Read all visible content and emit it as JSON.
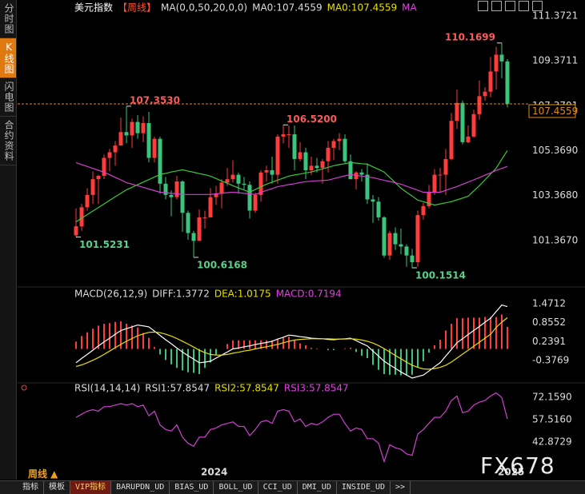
{
  "sidebar": [
    {
      "text": "分时图",
      "active": false
    },
    {
      "text": "K线图",
      "active": true
    },
    {
      "text": "闪电图",
      "active": false
    },
    {
      "text": "合约资料",
      "active": false
    }
  ],
  "bottom": {
    "period": "周线 ▲",
    "watermark": "FX678",
    "tabs": [
      {
        "text": "指标",
        "active": false
      },
      {
        "text": "模板",
        "active": false
      },
      {
        "text": "VIP指标",
        "active": true
      },
      {
        "text": "BARUPDN_UD",
        "active": false
      },
      {
        "text": "BIAS_UD",
        "active": false
      },
      {
        "text": "BOLL_UD",
        "active": false
      },
      {
        "text": "CCI_UD",
        "active": false
      },
      {
        "text": "DMI_UD",
        "active": false
      },
      {
        "text": "INSIDE_UD",
        "active": false
      },
      {
        "text": ">>",
        "active": false
      }
    ]
  },
  "chart_data": [
    {
      "type": "candlestick",
      "header": [
        {
          "text": "美元指数",
          "color": "#ffffff"
        },
        {
          "text": "【周线】",
          "color": "#ff5030"
        },
        {
          "text": "MA(0,0,50,20,0,0)",
          "color": "#dddddd"
        },
        {
          "text": "MA0:107.4559",
          "color": "#dddddd"
        },
        {
          "text": "MA0:107.4559",
          "color": "#e8e000"
        },
        {
          "text": "MA",
          "color": "#e040e0"
        }
      ],
      "up_color": "#ff3c3c",
      "down_color": "#3cc47c",
      "open": [
        101.6,
        102.0,
        102.85,
        103.4,
        104.1,
        104.25,
        105.05,
        105.3,
        105.6,
        106.2,
        106.05,
        106.65,
        106.15,
        106.6,
        105.05,
        105.9,
        103.9,
        103.4,
        103.3,
        104.0,
        102.6,
        101.7,
        101.35,
        102.4,
        102.4,
        103.3,
        103.45,
        103.95,
        104.1,
        104.3,
        103.9,
        103.85,
        102.7,
        103.4,
        104.4,
        104.5,
        104.3,
        106.0,
        106.1,
        106.1,
        105.0,
        105.3,
        104.5,
        104.7,
        104.6,
        104.9,
        105.5,
        105.8,
        105.9,
        104.9,
        104.1,
        104.4,
        104.3,
        103.2,
        103.1,
        102.4,
        100.7,
        101.7,
        101.2,
        101.1,
        100.7,
        100.4,
        102.5,
        102.9,
        103.5,
        104.3,
        104.3,
        105.0,
        106.7,
        107.5,
        105.75,
        106.0,
        107.0,
        107.8,
        108.0,
        108.9,
        109.65,
        109.35
      ],
      "high": [
        102.8,
        103.0,
        103.7,
        104.45,
        104.3,
        105.2,
        105.45,
        105.8,
        106.85,
        107.353,
        106.8,
        106.95,
        106.9,
        107.1,
        106.0,
        106.0,
        104.2,
        103.6,
        104.25,
        104.05,
        102.7,
        101.8,
        102.75,
        102.7,
        103.7,
        103.8,
        104.1,
        104.6,
        104.95,
        104.4,
        104.2,
        104.0,
        103.5,
        104.5,
        104.7,
        105.1,
        106.1,
        106.52,
        106.5,
        106.5,
        105.75,
        105.5,
        105.1,
        105.05,
        105.0,
        105.8,
        105.9,
        106.15,
        106.1,
        105.2,
        104.45,
        104.55,
        104.8,
        103.4,
        103.3,
        102.45,
        101.8,
        101.95,
        101.9,
        101.2,
        101.0,
        102.7,
        103.05,
        103.85,
        104.55,
        104.6,
        105.45,
        107.05,
        108.1,
        107.6,
        106.5,
        107.2,
        108.5,
        108.2,
        109.55,
        110.0,
        110.1699,
        109.45
      ],
      "low": [
        101.5231,
        101.8,
        102.7,
        103.0,
        103.0,
        104.1,
        104.45,
        104.7,
        105.6,
        105.7,
        105.5,
        105.9,
        105.75,
        104.85,
        104.85,
        103.45,
        103.2,
        102.45,
        103.2,
        101.75,
        101.4,
        100.6168,
        101.35,
        101.9,
        102.4,
        102.95,
        102.8,
        103.8,
        103.95,
        103.45,
        103.65,
        102.35,
        102.6,
        103.1,
        104.0,
        103.9,
        103.9,
        105.7,
        105.5,
        104.5,
        104.9,
        104.1,
        104.3,
        104.4,
        103.9,
        104.4,
        104.95,
        105.4,
        104.8,
        104.1,
        103.65,
        104.0,
        103.0,
        102.15,
        102.25,
        100.6,
        100.5,
        100.95,
        100.75,
        100.2,
        100.1514,
        100.2,
        102.3,
        102.8,
        103.4,
        103.55,
        103.4,
        104.95,
        106.35,
        105.65,
        105.7,
        105.95,
        106.75,
        107.6,
        107.75,
        108.1,
        108.6,
        107.3
      ],
      "close": [
        102.0,
        102.85,
        103.4,
        104.1,
        104.25,
        105.05,
        105.3,
        105.6,
        106.2,
        106.05,
        106.65,
        106.15,
        106.6,
        105.05,
        105.9,
        103.9,
        103.4,
        103.3,
        104.0,
        102.6,
        101.7,
        101.35,
        102.4,
        102.4,
        103.3,
        103.45,
        103.95,
        104.1,
        104.3,
        103.9,
        103.85,
        102.7,
        103.4,
        104.4,
        104.5,
        104.3,
        106.0,
        106.1,
        106.1,
        105.0,
        105.3,
        104.5,
        104.7,
        104.6,
        104.9,
        105.5,
        105.8,
        105.9,
        104.9,
        104.1,
        104.4,
        104.3,
        103.2,
        103.1,
        102.4,
        100.7,
        101.7,
        101.2,
        101.1,
        100.7,
        100.4,
        102.5,
        102.9,
        103.5,
        104.3,
        104.3,
        105.0,
        106.7,
        107.5,
        105.75,
        106.0,
        107.0,
        107.8,
        108.0,
        108.9,
        109.65,
        109.35,
        107.4559
      ],
      "series": [
        {
          "color": "#3cc83c",
          "values": [
            102.2,
            102.36,
            102.52,
            102.68,
            102.84,
            103.0,
            103.16,
            103.32,
            103.47,
            103.63,
            103.74,
            103.86,
            103.97,
            104.08,
            104.2,
            104.31,
            104.36,
            104.42,
            104.47,
            104.52,
            104.46,
            104.41,
            104.35,
            104.3,
            104.24,
            104.13,
            104.02,
            103.92,
            103.81,
            103.71,
            103.62,
            103.52,
            103.64,
            103.76,
            103.88,
            103.97,
            104.06,
            104.15,
            104.24,
            104.29,
            104.33,
            104.38,
            104.42,
            104.49,
            104.56,
            104.63,
            104.7,
            104.75,
            104.79,
            104.84,
            104.82,
            104.79,
            104.77,
            104.65,
            104.54,
            104.42,
            104.18,
            103.94,
            103.7,
            103.52,
            103.35,
            103.17,
            103.1,
            103.02,
            102.95,
            103.0,
            103.05,
            103.1,
            103.18,
            103.26,
            103.34,
            103.58,
            103.81,
            104.07,
            104.33,
            104.59,
            104.99,
            105.38
          ]
        },
        {
          "color": "#d040d0",
          "values": [
            104.84,
            104.75,
            104.67,
            104.58,
            104.5,
            104.41,
            104.3,
            104.18,
            104.07,
            103.95,
            103.88,
            103.81,
            103.74,
            103.66,
            103.59,
            103.52,
            103.5,
            103.47,
            103.45,
            103.42,
            103.42,
            103.42,
            103.42,
            103.42,
            103.42,
            103.45,
            103.47,
            103.5,
            103.52,
            103.5,
            103.47,
            103.45,
            103.42,
            103.51,
            103.6,
            103.68,
            103.77,
            103.81,
            103.86,
            103.9,
            103.95,
            103.99,
            104.01,
            104.03,
            104.04,
            104.06,
            104.12,
            104.19,
            104.25,
            104.31,
            104.27,
            104.24,
            104.2,
            104.17,
            104.11,
            104.05,
            104.0,
            103.94,
            103.88,
            103.79,
            103.7,
            103.61,
            103.52,
            103.52,
            103.52,
            103.52,
            103.6,
            103.69,
            103.77,
            103.87,
            103.97,
            104.07,
            104.17,
            104.28,
            104.38,
            104.49,
            104.58,
            104.67
          ]
        }
      ],
      "annotations": [
        {
          "value": 107.353,
          "label": "107.3530"
        },
        {
          "value": 106.52,
          "label": "106.5200"
        },
        {
          "value": 110.1699,
          "label": "110.1699"
        },
        {
          "value": 101.5231,
          "label": "101.5231"
        },
        {
          "value": 100.6168,
          "label": "100.6168"
        },
        {
          "value": 100.1514,
          "label": "100.1514"
        }
      ],
      "last_price": 107.4559,
      "last_price_color": "#e08a1e",
      "ylim": [
        99.44,
        111.73
      ],
      "yticks": [
        111.3721,
        109.3711,
        107.3701,
        {
          "value": 105.369,
          "label": "105.3690"
        },
        {
          "value": 103.368,
          "label": "103.3680"
        },
        {
          "value": 101.367,
          "label": "101.3670"
        }
      ]
    },
    {
      "type": "macd",
      "header": [
        {
          "text": "MACD(26,12,9)",
          "color": "#dddddd"
        },
        {
          "text": "DIFF:1.3772",
          "color": "#dddddd"
        },
        {
          "text": "DEA:1.0175",
          "color": "#e8e000"
        },
        {
          "text": "MACD:0.7194",
          "color": "#e040e0"
        }
      ],
      "up_color": "#ff3c3c",
      "down_color": "#3cc47c",
      "histogram": [
        0.24,
        0.42,
        0.54,
        0.66,
        0.76,
        0.82,
        0.84,
        0.88,
        0.9,
        0.82,
        0.76,
        0.7,
        0.52,
        0.36,
        0.06,
        -0.18,
        -0.36,
        -0.5,
        -0.62,
        -0.7,
        -0.76,
        -0.78,
        -0.82,
        -0.62,
        -0.44,
        -0.2,
        0.0,
        0.16,
        0.28,
        0.28,
        0.28,
        0.28,
        0.28,
        0.28,
        0.28,
        0.28,
        0.34,
        0.36,
        0.4,
        0.28,
        0.18,
        0.12,
        0.04,
        0.02,
        0.0,
        -0.04,
        -0.04,
        0.0,
        0.02,
        0.04,
        -0.1,
        -0.22,
        -0.3,
        -0.52,
        -0.68,
        -0.82,
        -0.84,
        -0.84,
        -0.86,
        -0.84,
        -0.84,
        -0.6,
        -0.4,
        -0.12,
        0.12,
        0.3,
        0.6,
        0.82,
        1.0,
        1.0,
        1.02,
        1.02,
        1.02,
        1.04,
        1.04,
        1.04,
        1.12,
        0.7194
      ],
      "series": [
        {
          "color": "#ffffff",
          "values": [
            -0.45,
            -0.31,
            -0.18,
            -0.04,
            0.1,
            0.23,
            0.35,
            0.48,
            0.6,
            0.66,
            0.72,
            0.78,
            0.75,
            0.72,
            0.58,
            0.44,
            0.3,
            0.17,
            0.03,
            -0.1,
            -0.22,
            -0.33,
            -0.45,
            -0.43,
            -0.4,
            -0.3,
            -0.2,
            -0.1,
            0.0,
            0.03,
            0.07,
            0.1,
            0.14,
            0.18,
            0.21,
            0.25,
            0.32,
            0.38,
            0.45,
            0.43,
            0.4,
            0.38,
            0.35,
            0.34,
            0.33,
            0.31,
            0.3,
            0.32,
            0.33,
            0.35,
            0.27,
            0.18,
            0.1,
            -0.07,
            -0.23,
            -0.4,
            -0.52,
            -0.63,
            -0.75,
            -0.85,
            -0.95,
            -0.9,
            -0.85,
            -0.72,
            -0.58,
            -0.45,
            -0.23,
            -0.02,
            0.2,
            0.33,
            0.47,
            0.6,
            0.73,
            0.87,
            1.0,
            1.22,
            1.43,
            1.3772
          ]
        },
        {
          "color": "#e8e000",
          "values": [
            -0.57,
            -0.52,
            -0.45,
            -0.37,
            -0.28,
            -0.18,
            -0.07,
            0.04,
            0.15,
            0.25,
            0.34,
            0.43,
            0.49,
            0.54,
            0.55,
            0.53,
            0.48,
            0.42,
            0.34,
            0.25,
            0.16,
            0.06,
            -0.04,
            -0.12,
            -0.18,
            -0.2,
            -0.2,
            -0.18,
            -0.14,
            -0.11,
            -0.07,
            -0.04,
            0.0,
            0.04,
            0.07,
            0.11,
            0.15,
            0.2,
            0.25,
            0.29,
            0.31,
            0.32,
            0.33,
            0.33,
            0.33,
            0.33,
            0.32,
            0.32,
            0.32,
            0.33,
            0.32,
            0.29,
            0.25,
            0.19,
            0.11,
            0.01,
            -0.1,
            -0.21,
            -0.32,
            -0.43,
            -0.53,
            -0.6,
            -0.65,
            -0.66,
            -0.64,
            -0.6,
            -0.53,
            -0.43,
            -0.3,
            -0.17,
            -0.04,
            0.09,
            0.22,
            0.35,
            0.48,
            0.7,
            0.87,
            1.0175
          ]
        }
      ],
      "ylim": [
        -1.08,
        1.94
      ],
      "yticks": [
        1.4712,
        0.8552,
        0.2391,
        -0.3769
      ]
    },
    {
      "type": "line",
      "header": [
        {
          "text": "RSI(14,14,14)",
          "color": "#dddddd"
        },
        {
          "text": "RSI1:57.8547",
          "color": "#dddddd"
        },
        {
          "text": "RSI2:57.8547",
          "color": "#e8e000"
        },
        {
          "text": "RSI3:57.8547",
          "color": "#e040e0"
        }
      ],
      "series": [
        {
          "color": "#d040d0",
          "values": [
            59,
            61,
            63,
            64,
            63,
            66,
            66,
            67,
            68,
            67,
            68,
            66,
            67,
            60,
            63,
            54,
            51,
            50,
            54,
            46,
            42,
            40,
            46,
            46,
            51,
            52,
            54,
            55,
            56,
            53,
            53,
            47,
            51,
            56,
            57,
            55,
            63,
            64,
            63,
            56,
            58,
            53,
            55,
            54,
            56,
            59,
            61,
            61,
            55,
            50,
            52,
            51,
            45,
            45,
            42,
            30,
            41,
            39,
            38,
            35,
            34,
            48,
            51,
            55,
            59,
            59,
            63,
            70,
            73,
            62,
            63,
            67,
            69,
            70,
            73,
            75,
            72,
            57.8547
          ]
        }
      ],
      "categories": [
        null,
        null,
        null,
        null,
        null,
        null,
        null,
        null,
        null,
        null,
        null,
        null,
        null,
        null,
        null,
        null,
        null,
        null,
        null,
        null,
        null,
        null,
        "2024",
        null,
        null,
        null,
        null,
        null,
        null,
        null,
        null,
        null,
        null,
        null,
        null,
        null,
        null,
        null,
        null,
        null,
        null,
        null,
        null,
        null,
        null,
        null,
        null,
        null,
        null,
        null,
        null,
        null,
        null,
        null,
        null,
        null,
        null,
        null,
        null,
        null,
        null,
        null,
        null,
        null,
        null,
        null,
        null,
        null,
        null,
        null,
        null,
        null,
        null,
        null,
        null,
        "2025",
        null,
        null
      ],
      "ylim": [
        26,
        80
      ],
      "yticks": [
        {
          "value": 72.159,
          "label": "72.1590"
        },
        {
          "value": 57.516,
          "label": "57.5160"
        },
        42.8729
      ]
    }
  ]
}
